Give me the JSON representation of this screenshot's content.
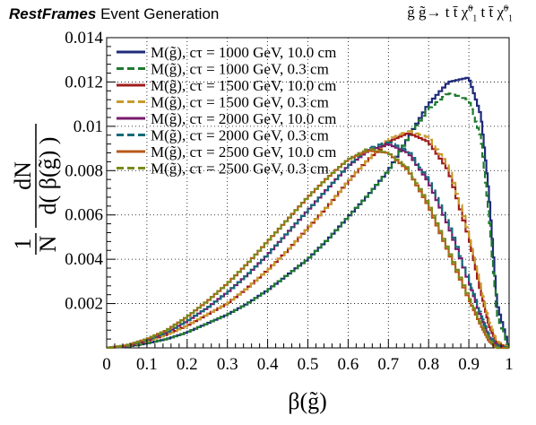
{
  "header": {
    "brand_bold": "RestFrames",
    "brand_rest": "Event Generation",
    "process": "g̃ g̃→ t t̄ χ̃",
    "process_sup": "0",
    "process_sub": "1",
    "process_mid": " t t̄ χ̃",
    "process_sup2": "0",
    "process_sub2": "1"
  },
  "chart_data": {
    "type": "line",
    "title": "",
    "xlabel": "β(g̃)",
    "ylabel": "1/N dN/d( β(g̃) )",
    "ylabel_frac_left_num": "1",
    "ylabel_frac_left_den": "N",
    "ylabel_frac_right_num": "dN",
    "ylabel_frac_right_den": "d( β(g̃) )",
    "xlim": [
      0,
      1
    ],
    "ylim": [
      0,
      0.014
    ],
    "xticks": [
      "0",
      "0.1",
      "0.2",
      "0.3",
      "0.4",
      "0.5",
      "0.6",
      "0.7",
      "0.8",
      "0.9",
      "1"
    ],
    "yticks": [
      "0.002",
      "0.004",
      "0.006",
      "0.008",
      "0.01",
      "0.012",
      "0.014"
    ],
    "grid": true,
    "legend_position": "top-left",
    "x": [
      0.0,
      0.05,
      0.1,
      0.15,
      0.2,
      0.25,
      0.3,
      0.35,
      0.4,
      0.45,
      0.5,
      0.55,
      0.6,
      0.65,
      0.7,
      0.75,
      0.8,
      0.85,
      0.9,
      0.93,
      0.95,
      0.97,
      1.0
    ],
    "series": [
      {
        "name": "M(g̃), cτ = 1000 GeV, 10.0 cm",
        "color": "#1f2a7a",
        "dashed": false,
        "values": [
          0,
          5e-05,
          0.0002,
          0.0004,
          0.0007,
          0.0011,
          0.0015,
          0.002,
          0.0026,
          0.0033,
          0.004,
          0.0049,
          0.0059,
          0.0069,
          0.008,
          0.0095,
          0.011,
          0.012,
          0.0122,
          0.0105,
          0.007,
          0.002,
          0.0
        ]
      },
      {
        "name": "M(g̃), cτ = 1000 GeV, 0.3 cm",
        "color": "#1e7a2e",
        "dashed": true,
        "values": [
          0,
          5e-05,
          0.0002,
          0.0004,
          0.0007,
          0.0011,
          0.0015,
          0.002,
          0.0026,
          0.0033,
          0.004,
          0.0049,
          0.0059,
          0.0069,
          0.008,
          0.0095,
          0.0108,
          0.0115,
          0.0112,
          0.0095,
          0.006,
          0.0015,
          0.0
        ]
      },
      {
        "name": "M(g̃), cτ = 1500 GeV, 10.0 cm",
        "color": "#a01c1c",
        "dashed": false,
        "values": [
          0,
          8e-05,
          0.0003,
          0.0006,
          0.001,
          0.0015,
          0.002,
          0.0027,
          0.0035,
          0.0044,
          0.0054,
          0.0064,
          0.0075,
          0.0085,
          0.0093,
          0.0097,
          0.0093,
          0.008,
          0.005,
          0.0025,
          0.001,
          0.0002,
          0.0
        ]
      },
      {
        "name": "M(g̃), cτ = 1500 GeV, 0.3 cm",
        "color": "#c89a2a",
        "dashed": true,
        "values": [
          0,
          8e-05,
          0.0003,
          0.0006,
          0.001,
          0.0015,
          0.002,
          0.0027,
          0.0035,
          0.0044,
          0.0054,
          0.0064,
          0.0075,
          0.0085,
          0.0094,
          0.0098,
          0.0095,
          0.0082,
          0.0052,
          0.0027,
          0.0012,
          0.0003,
          0.0
        ]
      },
      {
        "name": "M(g̃), cτ = 2000 GeV, 10.0 cm",
        "color": "#7a1a6e",
        "dashed": false,
        "values": [
          0,
          0.0001,
          0.00035,
          0.0007,
          0.0012,
          0.0018,
          0.0025,
          0.0033,
          0.0042,
          0.0052,
          0.0062,
          0.0072,
          0.0082,
          0.0089,
          0.0092,
          0.0088,
          0.0075,
          0.0055,
          0.003,
          0.0014,
          0.0005,
          0.0001,
          0.0
        ]
      },
      {
        "name": "M(g̃), cτ = 2000 GeV, 0.3 cm",
        "color": "#146a78",
        "dashed": true,
        "values": [
          0,
          0.0001,
          0.00035,
          0.0007,
          0.0012,
          0.0018,
          0.0025,
          0.0033,
          0.0042,
          0.0052,
          0.0062,
          0.0072,
          0.0082,
          0.009,
          0.0093,
          0.0089,
          0.0076,
          0.0056,
          0.0031,
          0.0015,
          0.0006,
          0.0001,
          0.0
        ]
      },
      {
        "name": "M(g̃), cτ = 2500 GeV, 10.0 cm",
        "color": "#b85a1a",
        "dashed": false,
        "values": [
          0,
          0.00012,
          0.0004,
          0.0008,
          0.0014,
          0.0021,
          0.0029,
          0.0038,
          0.0048,
          0.0058,
          0.0068,
          0.0077,
          0.0085,
          0.0089,
          0.0088,
          0.008,
          0.0064,
          0.0043,
          0.0022,
          0.001,
          0.0003,
          0.0,
          0.0
        ]
      },
      {
        "name": "M(g̃), cτ = 2500 GeV, 0.3 cm",
        "color": "#7a8a1a",
        "dashed": true,
        "values": [
          0,
          0.00012,
          0.0004,
          0.0008,
          0.0014,
          0.0021,
          0.0029,
          0.0038,
          0.0048,
          0.0058,
          0.0068,
          0.0077,
          0.0085,
          0.009,
          0.0088,
          0.0081,
          0.0065,
          0.0044,
          0.0023,
          0.0011,
          0.0004,
          0.0,
          0.0
        ]
      }
    ]
  }
}
